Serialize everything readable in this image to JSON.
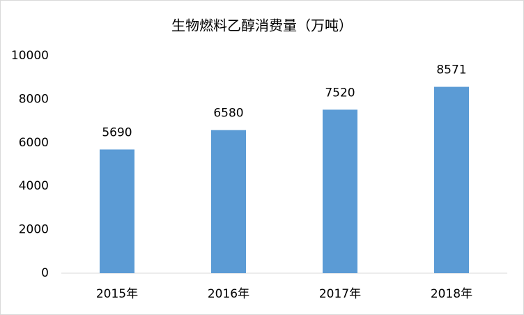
{
  "chart_data": {
    "type": "bar",
    "title": "生物燃料乙醇消费量（万吨）",
    "categories": [
      "2015年",
      "2016年",
      "2017年",
      "2018年"
    ],
    "values": [
      5690,
      6580,
      7520,
      8571
    ],
    "color": "#5b9bd5",
    "ylim": [
      0,
      10000
    ],
    "yticks": [
      0,
      2000,
      4000,
      6000,
      8000,
      10000
    ],
    "grid": false
  }
}
